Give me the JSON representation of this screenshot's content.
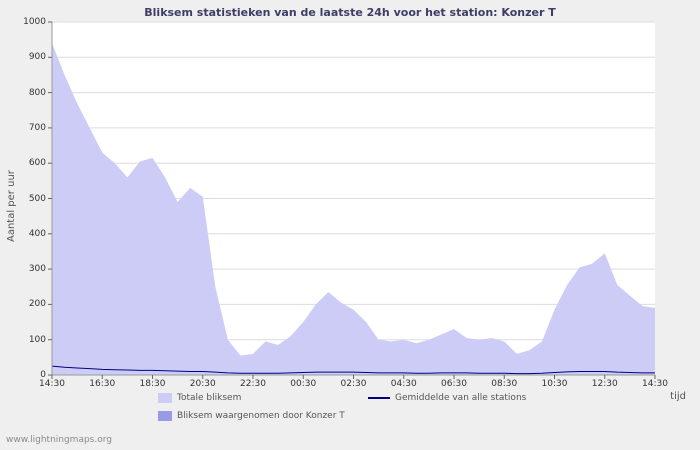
{
  "chart_data": {
    "type": "area",
    "title": "Bliksem statistieken van de laatste 24h voor het station: Konzer T",
    "ylabel": "Aantal per uur",
    "xlabel": "tijd",
    "ylim": [
      0,
      1000
    ],
    "ytick_step": 100,
    "grid": "horizontal",
    "legend_position": "bottom",
    "watermark": "www.lightningmaps.org",
    "x_ticks": [
      "14:30",
      "16:30",
      "18:30",
      "20:30",
      "22:30",
      "00:30",
      "02:30",
      "04:30",
      "06:30",
      "08:30",
      "10:30",
      "12:30",
      "14:30"
    ],
    "x_interval_minutes": 30,
    "colors": {
      "background": "#efefef",
      "plot_background": "#ffffff",
      "grid": "#dcdce4",
      "title": "#3d3d66"
    },
    "series": [
      {
        "name": "Totale bliksem",
        "type": "area",
        "color": "#ccccf7",
        "values": [
          940,
          850,
          770,
          700,
          630,
          600,
          560,
          605,
          615,
          560,
          490,
          530,
          505,
          250,
          100,
          55,
          60,
          95,
          85,
          110,
          150,
          200,
          235,
          205,
          185,
          150,
          100,
          95,
          100,
          90,
          100,
          115,
          130,
          105,
          100,
          105,
          95,
          60,
          70,
          95,
          185,
          255,
          305,
          315,
          345,
          255,
          225,
          195,
          190
        ]
      },
      {
        "name": "Bliksem waargenomen door Konzer T",
        "type": "area",
        "color": "#9999e6",
        "values": [
          0,
          0,
          0,
          0,
          0,
          0,
          0,
          0,
          0,
          0,
          0,
          0,
          0,
          0,
          0,
          0,
          0,
          0,
          0,
          0,
          0,
          0,
          0,
          0,
          0,
          0,
          0,
          0,
          0,
          0,
          0,
          0,
          0,
          0,
          0,
          0,
          0,
          0,
          0,
          0,
          0,
          0,
          0,
          0,
          0,
          0,
          0,
          0,
          0
        ]
      },
      {
        "name": "Gemiddelde van alle stations",
        "type": "line",
        "color": "#000080",
        "values": [
          25,
          22,
          20,
          18,
          16,
          15,
          14,
          13,
          13,
          12,
          11,
          10,
          10,
          8,
          6,
          5,
          5,
          5,
          5,
          6,
          7,
          8,
          8,
          8,
          8,
          7,
          6,
          6,
          6,
          5,
          5,
          6,
          6,
          6,
          5,
          5,
          5,
          4,
          4,
          5,
          7,
          9,
          10,
          10,
          10,
          8,
          7,
          6,
          6
        ]
      }
    ]
  }
}
